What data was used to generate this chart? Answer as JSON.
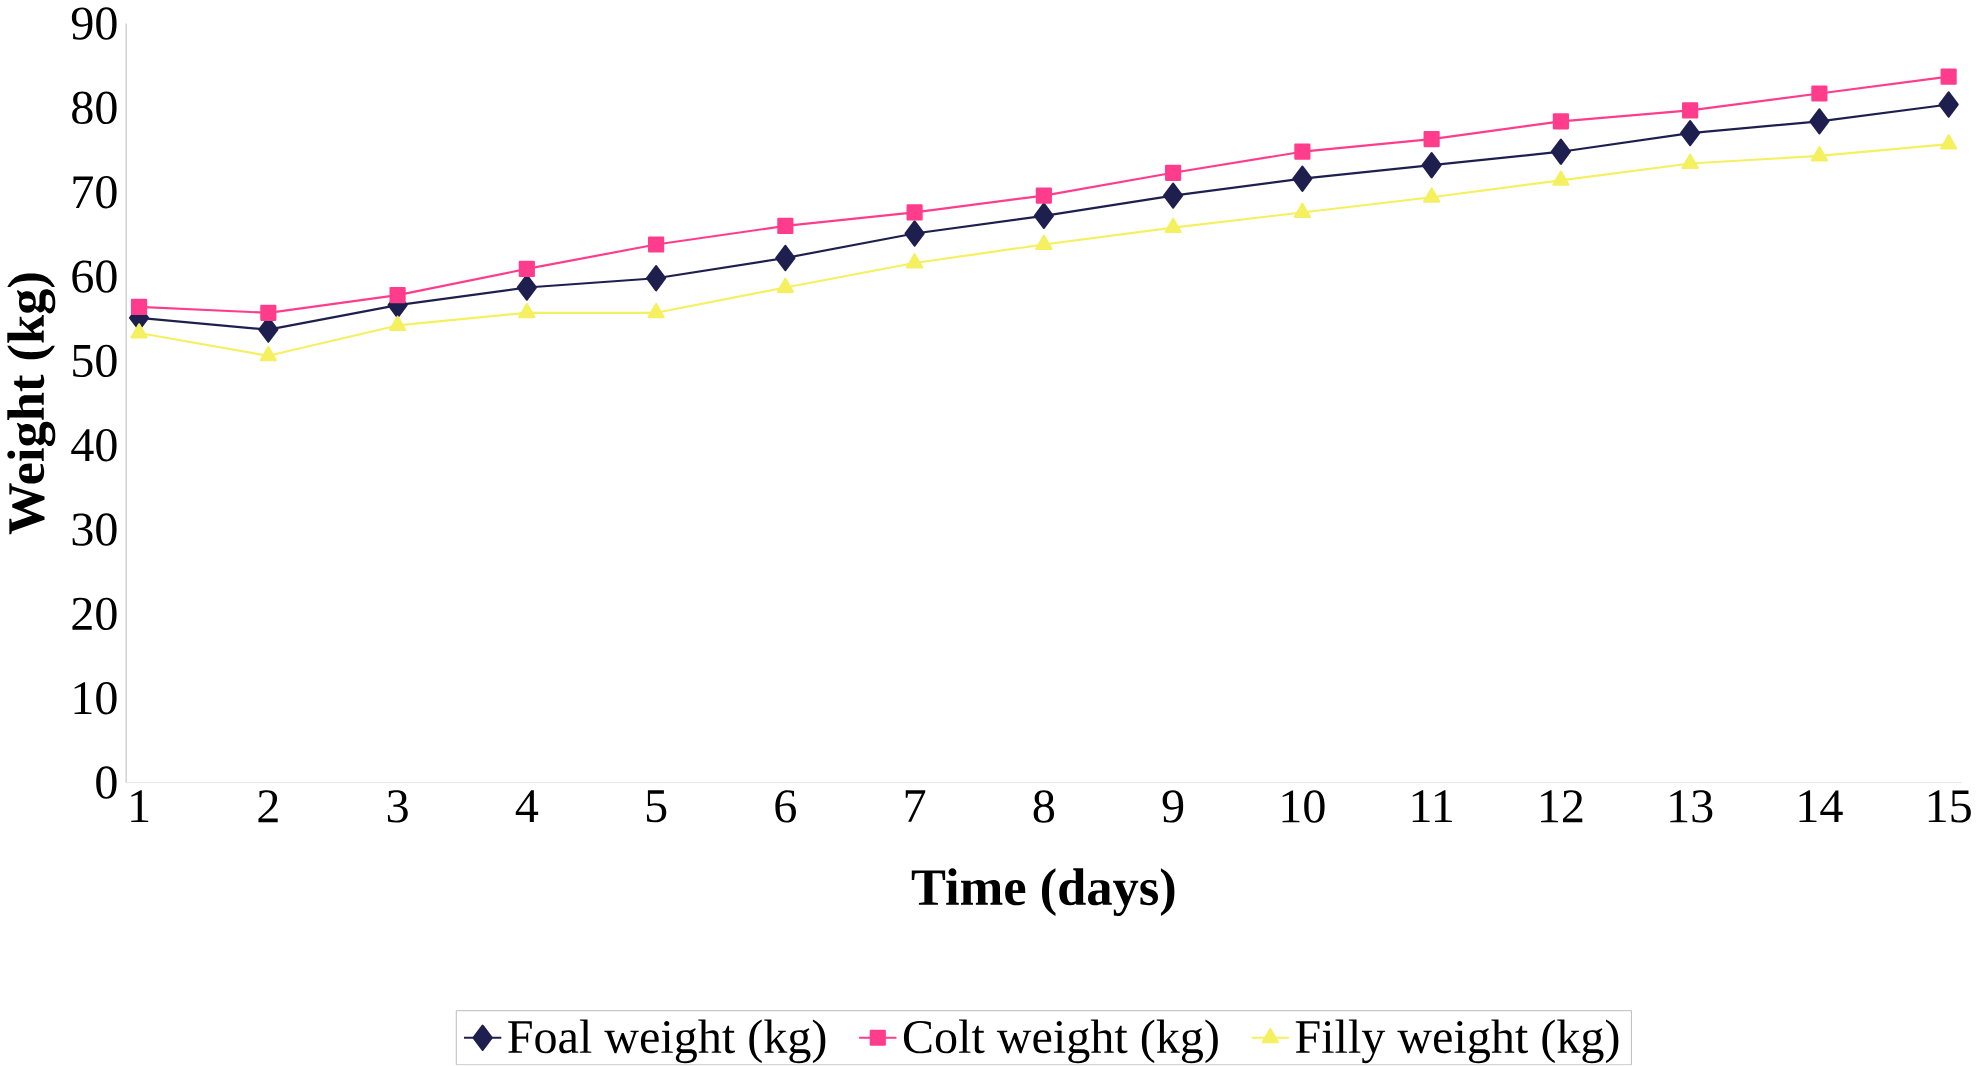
{
  "chart_data": {
    "type": "line",
    "xlabel": "Time (days)",
    "ylabel": "Weight (kg)",
    "categories": [
      "1",
      "2",
      "3",
      "4",
      "5",
      "6",
      "7",
      "8",
      "9",
      "10",
      "11",
      "12",
      "13",
      "14",
      "15"
    ],
    "series": [
      {
        "name": "Foal weight (kg)",
        "color": "#1f1f4f",
        "marker": "diamond",
        "values": [
          55.1,
          53.7,
          56.6,
          58.7,
          59.8,
          62.2,
          65.1,
          67.2,
          69.6,
          71.6,
          73.2,
          74.8,
          77.0,
          78.4,
          80.4
        ]
      },
      {
        "name": "Colt weight (kg)",
        "color": "#ff3d8c",
        "marker": "square",
        "values": [
          56.4,
          55.7,
          57.8,
          60.9,
          63.8,
          66.0,
          67.6,
          69.6,
          72.3,
          74.8,
          76.3,
          78.4,
          79.7,
          81.7,
          83.7
        ]
      },
      {
        "name": "Filly weight (kg)",
        "color": "#f5f060",
        "marker": "triangle",
        "values": [
          53.3,
          50.6,
          54.2,
          55.7,
          55.7,
          58.7,
          61.6,
          63.8,
          65.8,
          67.6,
          69.4,
          71.4,
          73.4,
          74.3,
          75.7
        ]
      }
    ],
    "ylim": [
      0,
      90
    ],
    "yticks": [
      0,
      10,
      20,
      30,
      40,
      50,
      60,
      70,
      80,
      90
    ],
    "grid": false,
    "legend": "bottom"
  }
}
